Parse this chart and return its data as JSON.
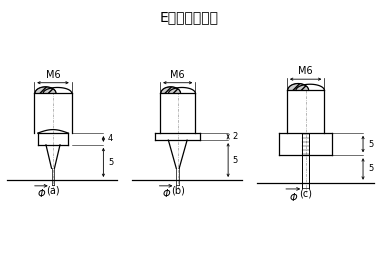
{
  "title": "E端局部放大图",
  "title_fontsize": 10,
  "background_color": "#ffffff",
  "labels": {
    "a": "(a)",
    "b": "(b)",
    "c": "(c)",
    "M6": "M6",
    "dim4": "4",
    "dim5": "5",
    "dim2": "2",
    "phi": "Φ"
  },
  "line_color": "#000000",
  "center_line_color": "#999999"
}
